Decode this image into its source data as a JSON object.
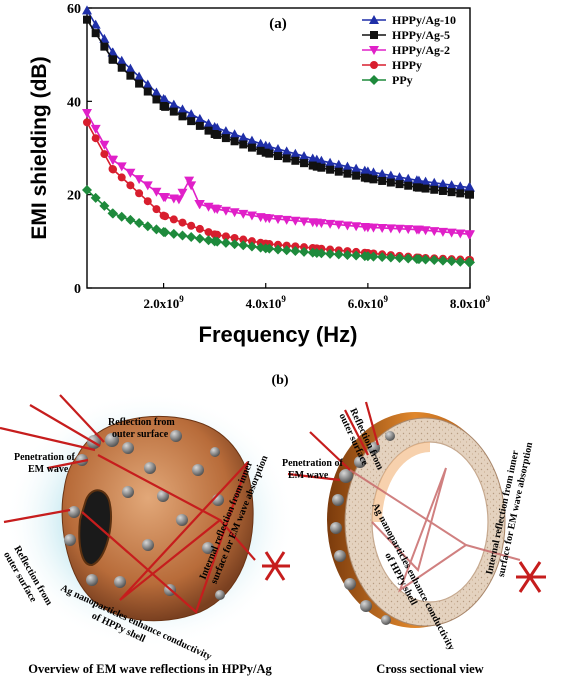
{
  "chart_data": {
    "type": "line",
    "panel_label": "(a)",
    "ylabel": "EMI shielding (dB)",
    "xlabel": "Frequency (Hz)",
    "xlim": [
      0.5,
      8.0
    ],
    "ylim": [
      0,
      60
    ],
    "x_ticks": [
      {
        "value": 2.0,
        "base": "2.0x10",
        "exp": "9"
      },
      {
        "value": 4.0,
        "base": "4.0x10",
        "exp": "9"
      },
      {
        "value": 6.0,
        "base": "6.0x10",
        "exp": "9"
      },
      {
        "value": 8.0,
        "base": "8.0x10",
        "exp": "9"
      }
    ],
    "x_unit_multiplier": "1e9",
    "y_ticks": [
      0,
      20,
      40,
      60
    ],
    "legend_position": "top-right",
    "series": [
      {
        "name": "HPPy/Ag-10",
        "color": "#1f2fa8",
        "marker": "triangle-up",
        "x": [
          0.5,
          1.0,
          2.0,
          3.0,
          4.0,
          5.0,
          6.0,
          7.0,
          8.0
        ],
        "y": [
          59.5,
          50.5,
          40.5,
          34.5,
          30.5,
          27.5,
          25.0,
          23.0,
          21.5
        ]
      },
      {
        "name": "HPPy/Ag-5",
        "color": "#111111",
        "marker": "square",
        "x": [
          0.5,
          1.0,
          2.0,
          3.0,
          4.0,
          5.0,
          6.0,
          7.0,
          8.0
        ],
        "y": [
          57.5,
          49.0,
          39.0,
          33.0,
          29.0,
          26.0,
          23.5,
          21.5,
          20.0
        ]
      },
      {
        "name": "HPPy/Ag-2",
        "color": "#e020c8",
        "marker": "triangle-down",
        "x": [
          0.5,
          1.0,
          2.0,
          2.3,
          2.5,
          2.7,
          3.0,
          4.0,
          5.0,
          6.0,
          7.0,
          8.0
        ],
        "y": [
          37.5,
          27.5,
          19.5,
          19.0,
          23.0,
          18.0,
          17.0,
          15.0,
          14.0,
          13.0,
          12.5,
          11.5
        ]
      },
      {
        "name": "HPPy",
        "color": "#d81e2e",
        "marker": "circle",
        "x": [
          0.5,
          1.0,
          2.0,
          3.0,
          4.0,
          5.0,
          6.0,
          7.0,
          8.0
        ],
        "y": [
          35.5,
          25.5,
          15.5,
          11.5,
          9.5,
          8.5,
          7.5,
          6.5,
          6.0
        ]
      },
      {
        "name": "PPy",
        "color": "#1e8a3c",
        "marker": "diamond",
        "x": [
          0.5,
          1.0,
          2.0,
          3.0,
          4.0,
          5.0,
          6.0,
          7.0,
          8.0
        ],
        "y": [
          21.0,
          16.0,
          12.0,
          10.0,
          8.5,
          7.5,
          6.8,
          6.2,
          5.5
        ]
      }
    ]
  },
  "panel_b": {
    "label": "(b)",
    "left": {
      "caption": "Overview of EM wave reflections in HPPy/Ag",
      "reflection_outer_top": [
        "Reflection from",
        "outer surface"
      ],
      "penetration": [
        "Penetration of",
        "EM wave"
      ],
      "reflection_outer_left": [
        "Reflection from",
        "outer surface"
      ],
      "ag_note": [
        "Ag nanoparticles enhance conductivity",
        "of HPPy shell"
      ],
      "internal": [
        "Internal reflection from inner",
        "surface for EM wave absorption"
      ]
    },
    "right": {
      "caption": "Cross sectional view",
      "reflection_outer_top": [
        "Reflection from",
        "outer surface"
      ],
      "penetration": [
        "Penetration of",
        "EM wave"
      ],
      "ag_note": [
        "Ag nanoparticles enhance conductivity",
        "of HPPy shell"
      ],
      "internal": [
        "Internal reflection from inner",
        "surface for EM wave absorption"
      ]
    }
  }
}
